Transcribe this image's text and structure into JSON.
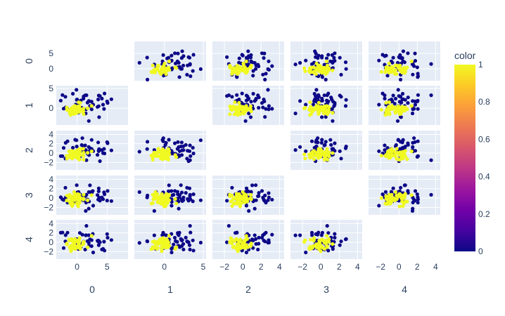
{
  "chart_data": {
    "type": "scatter",
    "kind": "scatter-matrix",
    "dimensions": [
      "0",
      "1",
      "2",
      "3",
      "4"
    ],
    "diagonal_visible": false,
    "ranges": [
      [
        -3,
        8
      ],
      [
        -3.5,
        5
      ],
      [
        -3,
        4.2
      ],
      [
        -3,
        4.2
      ],
      [
        -3,
        4.2
      ]
    ],
    "tick_labels": {
      "0": [
        "0",
        "5"
      ],
      "1": [
        "0",
        "5"
      ],
      "2": [
        "−2",
        "0",
        "2",
        "4"
      ],
      "3": [
        "−2",
        "0",
        "2",
        "4"
      ],
      "4": [
        "−2",
        "0",
        "2",
        "4"
      ]
    },
    "y_tick_labels": {
      "0": [
        "0",
        "5"
      ],
      "1": [
        "0",
        "5"
      ],
      "2": [
        "−2",
        "0",
        "2",
        "4"
      ],
      "3": [
        "−2",
        "0",
        "2",
        "4"
      ],
      "4": [
        "−2",
        "0",
        "2",
        "4"
      ]
    },
    "tick_values": {
      "0": [
        0,
        5
      ],
      "1": [
        0,
        5
      ],
      "2": [
        -2,
        0,
        2,
        4
      ],
      "3": [
        -2,
        0,
        2,
        4
      ],
      "4": [
        -2,
        0,
        2,
        4
      ]
    },
    "n_points": 100,
    "color_variable": "color",
    "color_values": [
      0,
      1
    ],
    "colorbar": {
      "title": "color",
      "ticks": [
        "0",
        "0.2",
        "0.4",
        "0.6",
        "0.8",
        "1"
      ],
      "tick_values": [
        0,
        0.2,
        0.4,
        0.6,
        0.8,
        1
      ],
      "colorscale": [
        "#0d0887",
        "#46039f",
        "#7201a8",
        "#9c179e",
        "#bd3786",
        "#d8576b",
        "#ed7953",
        "#fb9f3a",
        "#fdca26",
        "#f0f921"
      ]
    },
    "plot_bgcolor": "#e5ecf6",
    "gridcolor": "#ffffff",
    "class0_color": "#0d0887",
    "class1_color": "#f0f921"
  }
}
